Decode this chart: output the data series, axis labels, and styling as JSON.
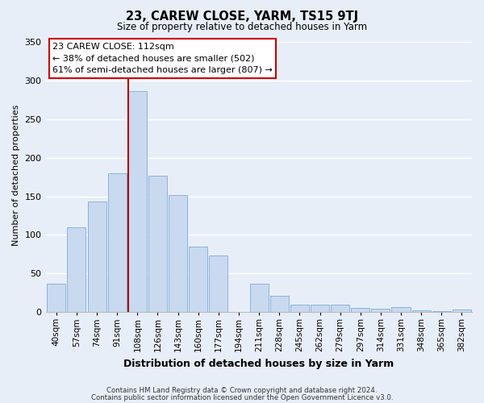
{
  "title": "23, CAREW CLOSE, YARM, TS15 9TJ",
  "subtitle": "Size of property relative to detached houses in Yarm",
  "xlabel": "Distribution of detached houses by size in Yarm",
  "ylabel": "Number of detached properties",
  "categories": [
    "40sqm",
    "57sqm",
    "74sqm",
    "91sqm",
    "108sqm",
    "126sqm",
    "143sqm",
    "160sqm",
    "177sqm",
    "194sqm",
    "211sqm",
    "228sqm",
    "245sqm",
    "262sqm",
    "279sqm",
    "297sqm",
    "314sqm",
    "331sqm",
    "348sqm",
    "365sqm",
    "382sqm"
  ],
  "values": [
    37,
    110,
    143,
    180,
    287,
    177,
    152,
    85,
    73,
    0,
    37,
    21,
    10,
    10,
    10,
    5,
    4,
    6,
    2,
    1,
    3
  ],
  "bar_color": "#c9d9f0",
  "bar_edge_color": "#8ab4d8",
  "highlight_bar_index": 4,
  "vline_color": "#aa0000",
  "ylim": [
    0,
    355
  ],
  "yticks": [
    0,
    50,
    100,
    150,
    200,
    250,
    300,
    350
  ],
  "background_color": "#e8eef8",
  "grid_color": "#ffffff",
  "annotation_text": "23 CAREW CLOSE: 112sqm\n← 38% of detached houses are smaller (502)\n61% of semi-detached houses are larger (807) →",
  "annotation_box_color": "#ffffff",
  "annotation_box_edge_color": "#cc0000",
  "footer_line1": "Contains HM Land Registry data © Crown copyright and database right 2024.",
  "footer_line2": "Contains public sector information licensed under the Open Government Licence v3.0."
}
